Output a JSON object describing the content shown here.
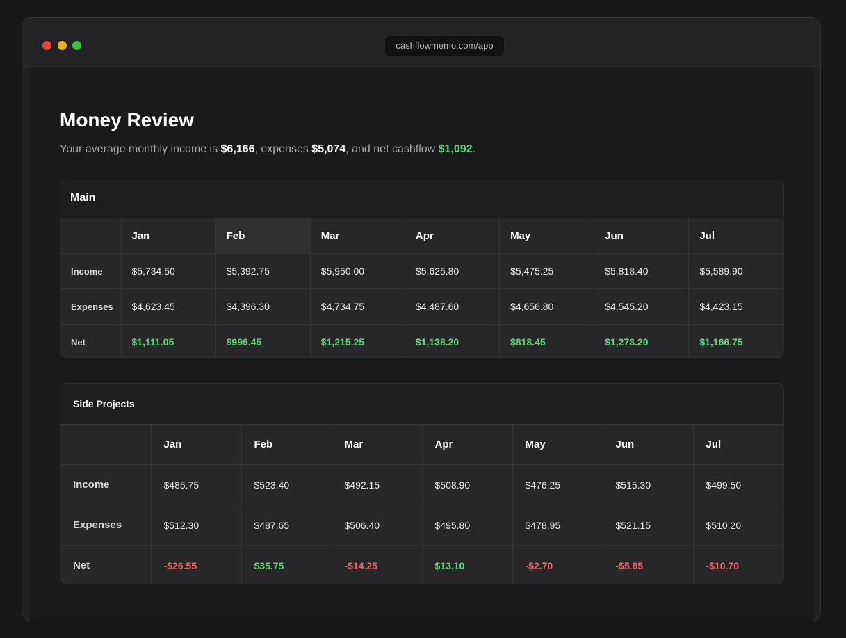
{
  "browser": {
    "url": "cashflowmemo.com/app"
  },
  "page": {
    "title": "Money Review",
    "summary": {
      "prefix": "Your average monthly income is ",
      "income": "$6,166",
      "mid1": ", expenses ",
      "expenses": "$5,074",
      "mid2": ", and net cashflow ",
      "net": "$1,092",
      "suffix": "."
    }
  },
  "tables": {
    "main": {
      "title": "Main",
      "months": [
        "Jan",
        "Feb",
        "Mar",
        "Apr",
        "May",
        "Jun",
        "Jul"
      ],
      "highlighted_month": "Feb",
      "rows": [
        {
          "label": "Income",
          "values": [
            "$5,734.50",
            "$5,392.75",
            "$5,950.00",
            "$5,625.80",
            "$5,475.25",
            "$5,818.40",
            "$5,589.90"
          ]
        },
        {
          "label": "Expenses",
          "values": [
            "$4,623.45",
            "$4,396.30",
            "$4,734.75",
            "$4,487.60",
            "$4,656.80",
            "$4,545.20",
            "$4,423.15"
          ]
        },
        {
          "label": "Net",
          "values": [
            "$1,111.05",
            "$996.45",
            "$1,215.25",
            "$1,138.20",
            "$818.45",
            "$1,273.20",
            "$1,166.75"
          ]
        }
      ]
    },
    "side": {
      "title": "Side Projects",
      "months": [
        "Jan",
        "Feb",
        "Mar",
        "Apr",
        "May",
        "Jun",
        "Jul"
      ],
      "rows": [
        {
          "label": "Income",
          "values": [
            "$485.75",
            "$523.40",
            "$492.15",
            "$508.90",
            "$476.25",
            "$515.30",
            "$499.50"
          ]
        },
        {
          "label": "Expenses",
          "values": [
            "$512.30",
            "$487.65",
            "$506.40",
            "$495.80",
            "$478.95",
            "$521.15",
            "$510.20"
          ]
        },
        {
          "label": "Net",
          "values": [
            "-$26.55",
            "$35.75",
            "-$14.25",
            "$13.10",
            "-$2.70",
            "-$5.85",
            "-$10.70"
          ]
        }
      ]
    }
  },
  "colors": {
    "positive": "#5fd67c",
    "negative": "#ee6a6a",
    "highlight_column": "#2f2f32"
  }
}
